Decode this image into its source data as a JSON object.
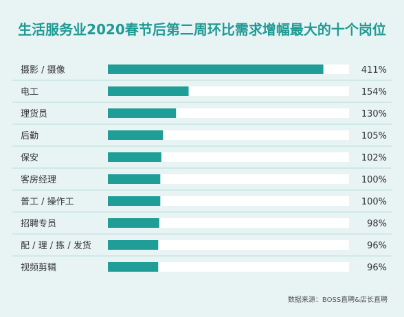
{
  "chart_data": {
    "type": "bar",
    "orientation": "horizontal",
    "title": "生活服务业2020春节后第二周环比需求增幅最大的十个岗位",
    "categories": [
      "摄影 / 摄像",
      "电工",
      "理货员",
      "后勤",
      "保安",
      "客房经理",
      "普工 / 操作工",
      "招聘专员",
      "配 / 理 / 拣 / 发货",
      "视频剪辑"
    ],
    "values": [
      411,
      154,
      130,
      105,
      102,
      100,
      100,
      98,
      96,
      96
    ],
    "value_labels": [
      "411%",
      "154%",
      "130%",
      "105%",
      "102%",
      "100%",
      "100%",
      "98%",
      "96%",
      "96%"
    ],
    "unit": "%",
    "xlim": [
      0,
      460
    ],
    "grid": false,
    "legend": "none"
  },
  "source": "数据来源：BOSS直聘&店长直聘",
  "colors": {
    "title": "#1f9a94",
    "bar": "#1e9e96",
    "track": "#ffffff",
    "background": "#e8f3f4",
    "divider": "#b9dcdc"
  }
}
